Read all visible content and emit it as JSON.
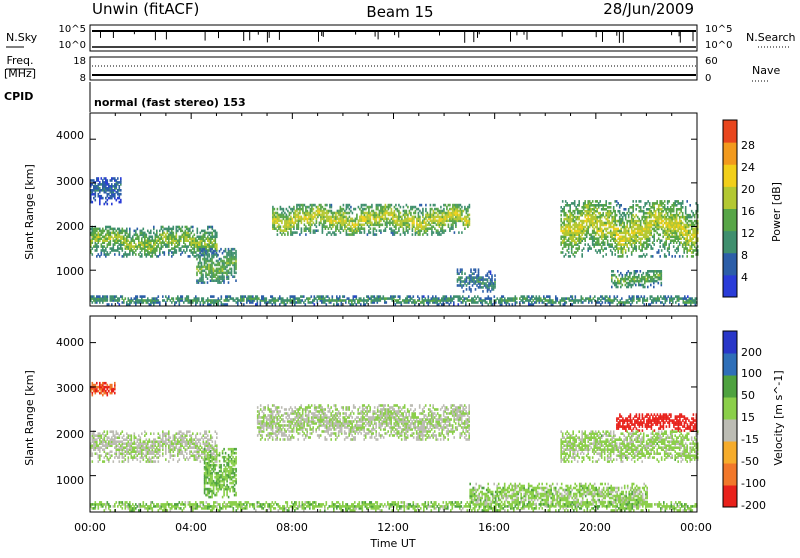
{
  "header": {
    "station": "Unwin (fitACF)",
    "beam": "Beam 15",
    "date": "28/Jun/2009"
  },
  "strips": {
    "nsky_label": "N.Sky",
    "nsearch_label": "N.Search",
    "freq_label_1": "Freq.",
    "freq_label_2": "[MHz]",
    "nave_label": "Nave",
    "cpid_label": "CPID",
    "cpid_text": "normal (fast stereo) 153",
    "nsky_ticks": [
      "10^5",
      "10^0"
    ],
    "nsearch_ticks": [
      "10^5",
      "10^0"
    ],
    "freq_ticks": [
      "18",
      "8"
    ],
    "nave_ticks": [
      "60",
      "0"
    ]
  },
  "panels": {
    "power": {
      "ylabel": "Slant Range [km]",
      "yticks": [
        "4000",
        "3000",
        "2000",
        "1000"
      ],
      "cbar_label": "Power [dB]",
      "cbar_ticks": [
        "28",
        "24",
        "20",
        "16",
        "12",
        "8",
        "4"
      ]
    },
    "velocity": {
      "ylabel": "Slant Range [km]",
      "yticks": [
        "4000",
        "3000",
        "2000",
        "1000"
      ],
      "cbar_label": "Velocity [m s^-1]",
      "cbar_ticks": [
        "200",
        "100",
        "50",
        "15",
        "-15",
        "-50",
        "-100",
        "-200"
      ]
    }
  },
  "xaxis": {
    "label": "Time UT",
    "ticks": [
      "00:00",
      "04:00",
      "08:00",
      "12:00",
      "16:00",
      "20:00",
      "00:00"
    ]
  },
  "colors": {
    "power_scale": [
      "#2a3cd8",
      "#2c5ea8",
      "#3f8f6e",
      "#57a547",
      "#b3c832",
      "#f2cf1a",
      "#f29a1e",
      "#e8461e"
    ],
    "velocity_scale": [
      "#e8211b",
      "#f1772a",
      "#f6ac2b",
      "#bcbcb4",
      "#8bcf4a",
      "#4ea23f",
      "#2f6fb8",
      "#2937c8"
    ]
  },
  "chart_data": [
    {
      "type": "heatmap",
      "title": "Power",
      "xlabel": "Time UT",
      "ylabel": "Slant Range [km]",
      "xlim": [
        "00:00",
        "24:00"
      ],
      "ylim": [
        180,
        4600
      ],
      "colorbar": {
        "label": "Power [dB]",
        "range": [
          0,
          30
        ]
      },
      "regions": [
        {
          "t": [
            0.0,
            5.0
          ],
          "r": [
            1300,
            2000
          ],
          "power": 14
        },
        {
          "t": [
            4.2,
            5.8
          ],
          "r": [
            700,
            1500
          ],
          "power": 12
        },
        {
          "t": [
            0.0,
            1.2
          ],
          "r": [
            2500,
            3100
          ],
          "power": 6
        },
        {
          "t": [
            7.2,
            15.0
          ],
          "r": [
            1800,
            2500
          ],
          "power": 16
        },
        {
          "t": [
            14.5,
            16.0
          ],
          "r": [
            500,
            1000
          ],
          "power": 8
        },
        {
          "t": [
            18.6,
            24.0
          ],
          "r": [
            1300,
            2600
          ],
          "power": 16
        },
        {
          "t": [
            20.6,
            22.6
          ],
          "r": [
            600,
            1000
          ],
          "power": 12
        },
        {
          "t": [
            0.0,
            24.0
          ],
          "r": [
            200,
            400
          ],
          "power": 10
        }
      ]
    },
    {
      "type": "heatmap",
      "title": "Velocity",
      "xlabel": "Time UT",
      "ylabel": "Slant Range [km]",
      "xlim": [
        "00:00",
        "24:00"
      ],
      "ylim": [
        180,
        4600
      ],
      "colorbar": {
        "label": "Velocity [m s^-1]",
        "range": [
          -200,
          200
        ]
      },
      "regions": [
        {
          "t": [
            0.0,
            5.0
          ],
          "r": [
            1300,
            2000
          ],
          "velocity": -10
        },
        {
          "t": [
            0.0,
            1.0
          ],
          "r": [
            2800,
            3100
          ],
          "velocity": -150
        },
        {
          "t": [
            4.5,
            5.8
          ],
          "r": [
            500,
            1600
          ],
          "velocity": 40
        },
        {
          "t": [
            6.6,
            15.0
          ],
          "r": [
            1800,
            2600
          ],
          "velocity": -5
        },
        {
          "t": [
            20.8,
            24.0
          ],
          "r": [
            2000,
            2400
          ],
          "velocity": -200
        },
        {
          "t": [
            18.6,
            24.0
          ],
          "r": [
            1300,
            2000
          ],
          "velocity": 15
        },
        {
          "t": [
            15.0,
            22.0
          ],
          "r": [
            300,
            800
          ],
          "velocity": 20
        },
        {
          "t": [
            0.0,
            24.0
          ],
          "r": [
            200,
            400
          ],
          "velocity": 30
        }
      ]
    }
  ]
}
